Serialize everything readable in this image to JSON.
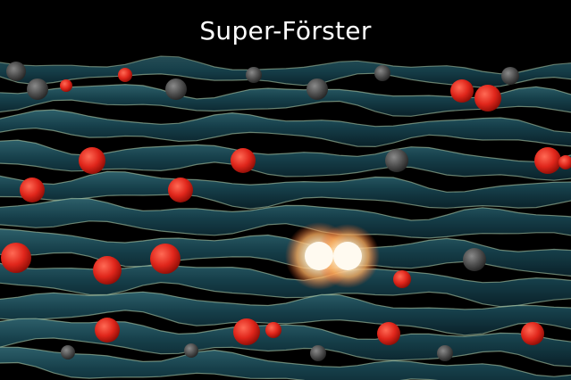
{
  "title": "Super-Förster",
  "colors": {
    "background": "#000000",
    "fiber": "#123843",
    "fiber_highlight": "#2f6470",
    "fiber_edge": "#c9e3c6",
    "chromophore_red": "#e0261b",
    "chromophore_gray": "#4a4a4a",
    "exciton_glow": "#fff2d0"
  }
}
